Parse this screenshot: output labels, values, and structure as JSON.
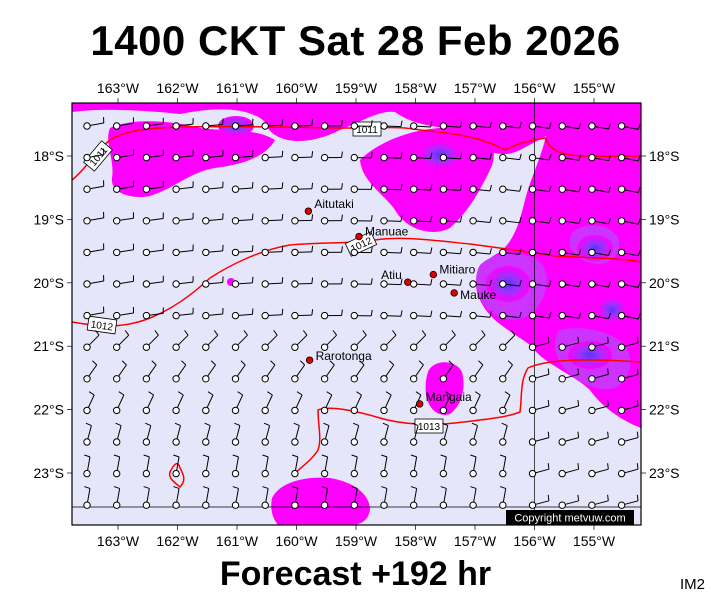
{
  "title": "1400 CKT Sat 28 Feb 2026",
  "footer": "Forecast +192 hr",
  "image_tag": "IM2",
  "copyright": "Copyright metvuw.com",
  "colors": {
    "background": "#e6e6fa",
    "rain_light": "#ff00ff",
    "rain_medium": "#cc33ff",
    "rain_heavy": "#8833ff",
    "isobar": "#ff0000",
    "place_marker": "#dd0000"
  },
  "axes": {
    "lon_labels": [
      "163°W",
      "162°W",
      "161°W",
      "160°W",
      "159°W",
      "158°W",
      "157°W",
      "156°W",
      "155°W"
    ],
    "lat_labels": [
      "18°S",
      "19°S",
      "20°S",
      "21°S",
      "22°S",
      "23°S"
    ],
    "lon_values": [
      -163,
      -162,
      -161,
      -160,
      -159,
      -158,
      -157,
      -156,
      -155
    ],
    "lat_values": [
      -18,
      -19,
      -20,
      -21,
      -22,
      -23
    ]
  },
  "places": [
    {
      "name": "Aitutaki",
      "lon": -159.8,
      "lat": -18.87
    },
    {
      "name": "Manuae",
      "lon": -158.95,
      "lat": -19.27
    },
    {
      "name": "Atiu",
      "lon": -158.13,
      "lat": -19.99
    },
    {
      "name": "Mitiaro",
      "lon": -157.7,
      "lat": -19.87
    },
    {
      "name": "Mauke",
      "lon": -157.35,
      "lat": -20.16
    },
    {
      "name": "Rarotonga",
      "lon": -159.78,
      "lat": -21.22
    },
    {
      "name": "Mangaia",
      "lon": -157.93,
      "lat": -21.91
    }
  ],
  "isobars": [
    {
      "label": "1011",
      "value": 1011
    },
    {
      "label": "1011",
      "value": 1011
    },
    {
      "label": "1012",
      "value": 1012
    },
    {
      "label": "1012",
      "value": 1012
    },
    {
      "label": "1013",
      "value": 1013
    }
  ]
}
